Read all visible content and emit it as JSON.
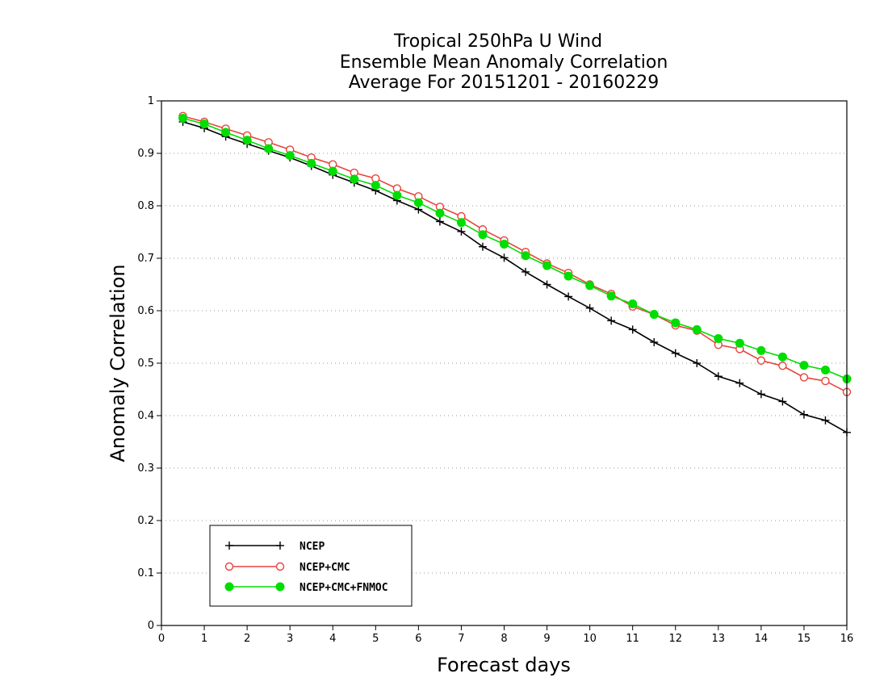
{
  "chart_data": {
    "type": "line",
    "title_lines": [
      "Tropical 250hPa U Wind",
      "Ensemble Mean Anomaly Correlation",
      "Average For 20151201 - 20160229"
    ],
    "xlabel": "Forecast days",
    "ylabel": "Anomaly Correlation",
    "xlim": [
      0,
      16
    ],
    "ylim": [
      0,
      1
    ],
    "x_ticks": [
      "0",
      "1",
      "2",
      "3",
      "4",
      "5",
      "6",
      "7",
      "8",
      "9",
      "10",
      "11",
      "12",
      "13",
      "14",
      "15",
      "16"
    ],
    "y_ticks": [
      "0",
      "0.1",
      "0.2",
      "0.3",
      "0.4",
      "0.5",
      "0.6",
      "0.7",
      "0.8",
      "0.9",
      "1"
    ],
    "grid": "dotted horizontal",
    "legend_position": "bottom-left",
    "x": [
      0.5,
      1,
      1.5,
      2,
      2.5,
      3,
      3.5,
      4,
      4.5,
      5,
      5.5,
      6,
      6.5,
      7,
      7.5,
      8,
      8.5,
      9,
      9.5,
      10,
      10.5,
      11,
      11.5,
      12,
      12.5,
      13,
      13.5,
      14,
      14.5,
      15,
      15.5,
      16
    ],
    "series": [
      {
        "name": "NCEP",
        "color": "#000000",
        "marker": "plus",
        "values": [
          0.96,
          0.948,
          0.932,
          0.918,
          0.905,
          0.892,
          0.876,
          0.859,
          0.844,
          0.829,
          0.81,
          0.793,
          0.77,
          0.751,
          0.722,
          0.701,
          0.674,
          0.65,
          0.627,
          0.605,
          0.581,
          0.564,
          0.54,
          0.519,
          0.5,
          0.475,
          0.462,
          0.441,
          0.427,
          0.402,
          0.391,
          0.368
        ]
      },
      {
        "name": "NCEP+CMC",
        "color": "#e8433c",
        "marker": "open-circle",
        "values": [
          0.971,
          0.96,
          0.947,
          0.934,
          0.921,
          0.907,
          0.892,
          0.879,
          0.863,
          0.852,
          0.833,
          0.818,
          0.798,
          0.78,
          0.755,
          0.734,
          0.712,
          0.69,
          0.672,
          0.65,
          0.632,
          0.608,
          0.593,
          0.572,
          0.562,
          0.535,
          0.527,
          0.505,
          0.495,
          0.473,
          0.466,
          0.445
        ]
      },
      {
        "name": "NCEP+CMC+FNMOC",
        "color": "#00dd00",
        "marker": "filled-circle",
        "values": [
          0.967,
          0.956,
          0.94,
          0.925,
          0.909,
          0.896,
          0.881,
          0.866,
          0.851,
          0.839,
          0.82,
          0.806,
          0.786,
          0.768,
          0.745,
          0.727,
          0.705,
          0.686,
          0.666,
          0.648,
          0.628,
          0.613,
          0.593,
          0.577,
          0.564,
          0.547,
          0.538,
          0.524,
          0.512,
          0.496,
          0.487,
          0.47
        ]
      }
    ]
  }
}
